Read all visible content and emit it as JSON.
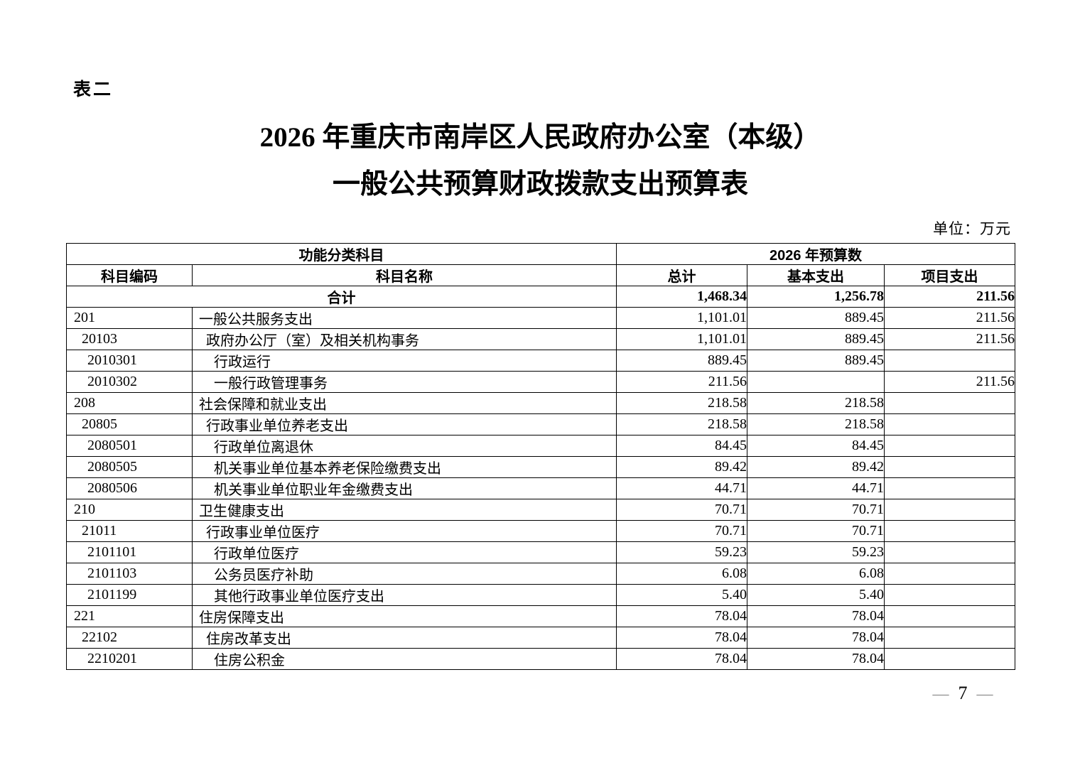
{
  "page": {
    "table_label": "表二",
    "title_line1": "2026 年重庆市南岸区人民政府办公室（本级）",
    "title_line2": "一般公共预算财政拨款支出预算表",
    "unit_note": "单位：万元",
    "footer": {
      "dash": "—",
      "page_number": "7"
    }
  },
  "table": {
    "header": {
      "group_left": "功能分类科目",
      "group_right": "2026 年预算数",
      "col_code": "科目编码",
      "col_name": "科目名称",
      "col_total": "总计",
      "col_basic": "基本支出",
      "col_project": "项目支出"
    },
    "summary_row": {
      "name": "合计",
      "total": "1,468.34",
      "basic": "1,256.78",
      "project": "211.56"
    },
    "rows": [
      {
        "code": "201",
        "name": "一般公共服务支出",
        "level": 1,
        "total": "1,101.01",
        "basic": "889.45",
        "project": "211.56"
      },
      {
        "code": "20103",
        "name": "政府办公厅（室）及相关机构事务",
        "level": 2,
        "total": "1,101.01",
        "basic": "889.45",
        "project": "211.56"
      },
      {
        "code": "2010301",
        "name": "行政运行",
        "level": 3,
        "total": "889.45",
        "basic": "889.45",
        "project": ""
      },
      {
        "code": "2010302",
        "name": "一般行政管理事务",
        "level": 3,
        "total": "211.56",
        "basic": "",
        "project": "211.56"
      },
      {
        "code": "208",
        "name": "社会保障和就业支出",
        "level": 1,
        "total": "218.58",
        "basic": "218.58",
        "project": ""
      },
      {
        "code": "20805",
        "name": "行政事业单位养老支出",
        "level": 2,
        "total": "218.58",
        "basic": "218.58",
        "project": ""
      },
      {
        "code": "2080501",
        "name": "行政单位离退休",
        "level": 3,
        "total": "84.45",
        "basic": "84.45",
        "project": ""
      },
      {
        "code": "2080505",
        "name": "机关事业单位基本养老保险缴费支出",
        "level": 3,
        "total": "89.42",
        "basic": "89.42",
        "project": ""
      },
      {
        "code": "2080506",
        "name": "机关事业单位职业年金缴费支出",
        "level": 3,
        "total": "44.71",
        "basic": "44.71",
        "project": ""
      },
      {
        "code": "210",
        "name": "卫生健康支出",
        "level": 1,
        "total": "70.71",
        "basic": "70.71",
        "project": ""
      },
      {
        "code": "21011",
        "name": "行政事业单位医疗",
        "level": 2,
        "total": "70.71",
        "basic": "70.71",
        "project": ""
      },
      {
        "code": "2101101",
        "name": "行政单位医疗",
        "level": 3,
        "total": "59.23",
        "basic": "59.23",
        "project": ""
      },
      {
        "code": "2101103",
        "name": "公务员医疗补助",
        "level": 3,
        "total": "6.08",
        "basic": "6.08",
        "project": ""
      },
      {
        "code": "2101199",
        "name": "其他行政事业单位医疗支出",
        "level": 3,
        "total": "5.40",
        "basic": "5.40",
        "project": ""
      },
      {
        "code": "221",
        "name": "住房保障支出",
        "level": 1,
        "total": "78.04",
        "basic": "78.04",
        "project": ""
      },
      {
        "code": "22102",
        "name": "住房改革支出",
        "level": 2,
        "total": "78.04",
        "basic": "78.04",
        "project": ""
      },
      {
        "code": "2210201",
        "name": "住房公积金",
        "level": 3,
        "total": "78.04",
        "basic": "78.04",
        "project": ""
      }
    ]
  }
}
